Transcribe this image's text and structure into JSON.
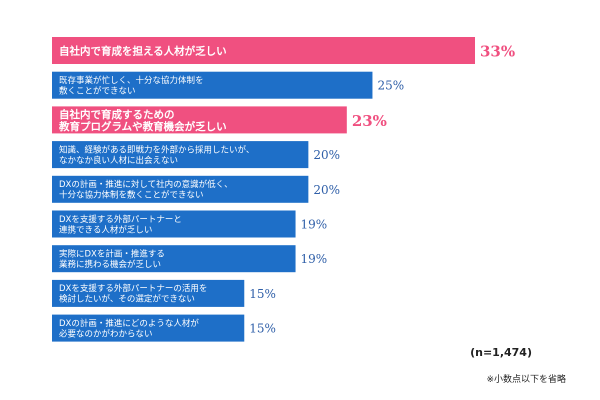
{
  "chart_data": {
    "type": "bar",
    "orientation": "horizontal",
    "categories": [
      [
        "自社内で育成を担える人材が乏しい"
      ],
      [
        "既存事業が忙しく、十分な協力体制を",
        "敷くことができない"
      ],
      [
        "自社内で育成するための",
        "教育プログラムや教育機会が乏しい"
      ],
      [
        "知識、経験がある即戦力を外部から採用したいが、",
        "なかなか良い人材に出会えない"
      ],
      [
        "DXの計画・推進に対して社内の意識が低く、",
        "十分な協力体制を敷くことができない"
      ],
      [
        "DXを支援する外部パートナーと",
        "連携できる人材が乏しい"
      ],
      [
        "実際にDXを計画・推進する",
        "業務に携わる機会が乏しい"
      ],
      [
        "DXを支援する外部パートナーの活用を",
        "検討したいが、その選定ができない"
      ],
      [
        "DXの計画・推進にどのような人材が",
        "必要なのかがわからない"
      ]
    ],
    "values": [
      33,
      25,
      23,
      20,
      20,
      19,
      19,
      15,
      15
    ],
    "value_labels": [
      "33%",
      "25%",
      "23%",
      "20%",
      "20%",
      "19%",
      "19%",
      "15%",
      "15%"
    ],
    "highlighted": [
      true,
      false,
      true,
      false,
      false,
      false,
      false,
      false,
      false
    ],
    "colors": {
      "highlight": "#f05080",
      "normal": "#1e6fc8",
      "highlight_text": "#f05080",
      "normal_text": "#2f5fa8"
    },
    "xlim": [
      0,
      33
    ],
    "grid": false
  },
  "notes": {
    "sample_size": "(n=1,474)",
    "rounding": "※小数点以下を省略"
  }
}
